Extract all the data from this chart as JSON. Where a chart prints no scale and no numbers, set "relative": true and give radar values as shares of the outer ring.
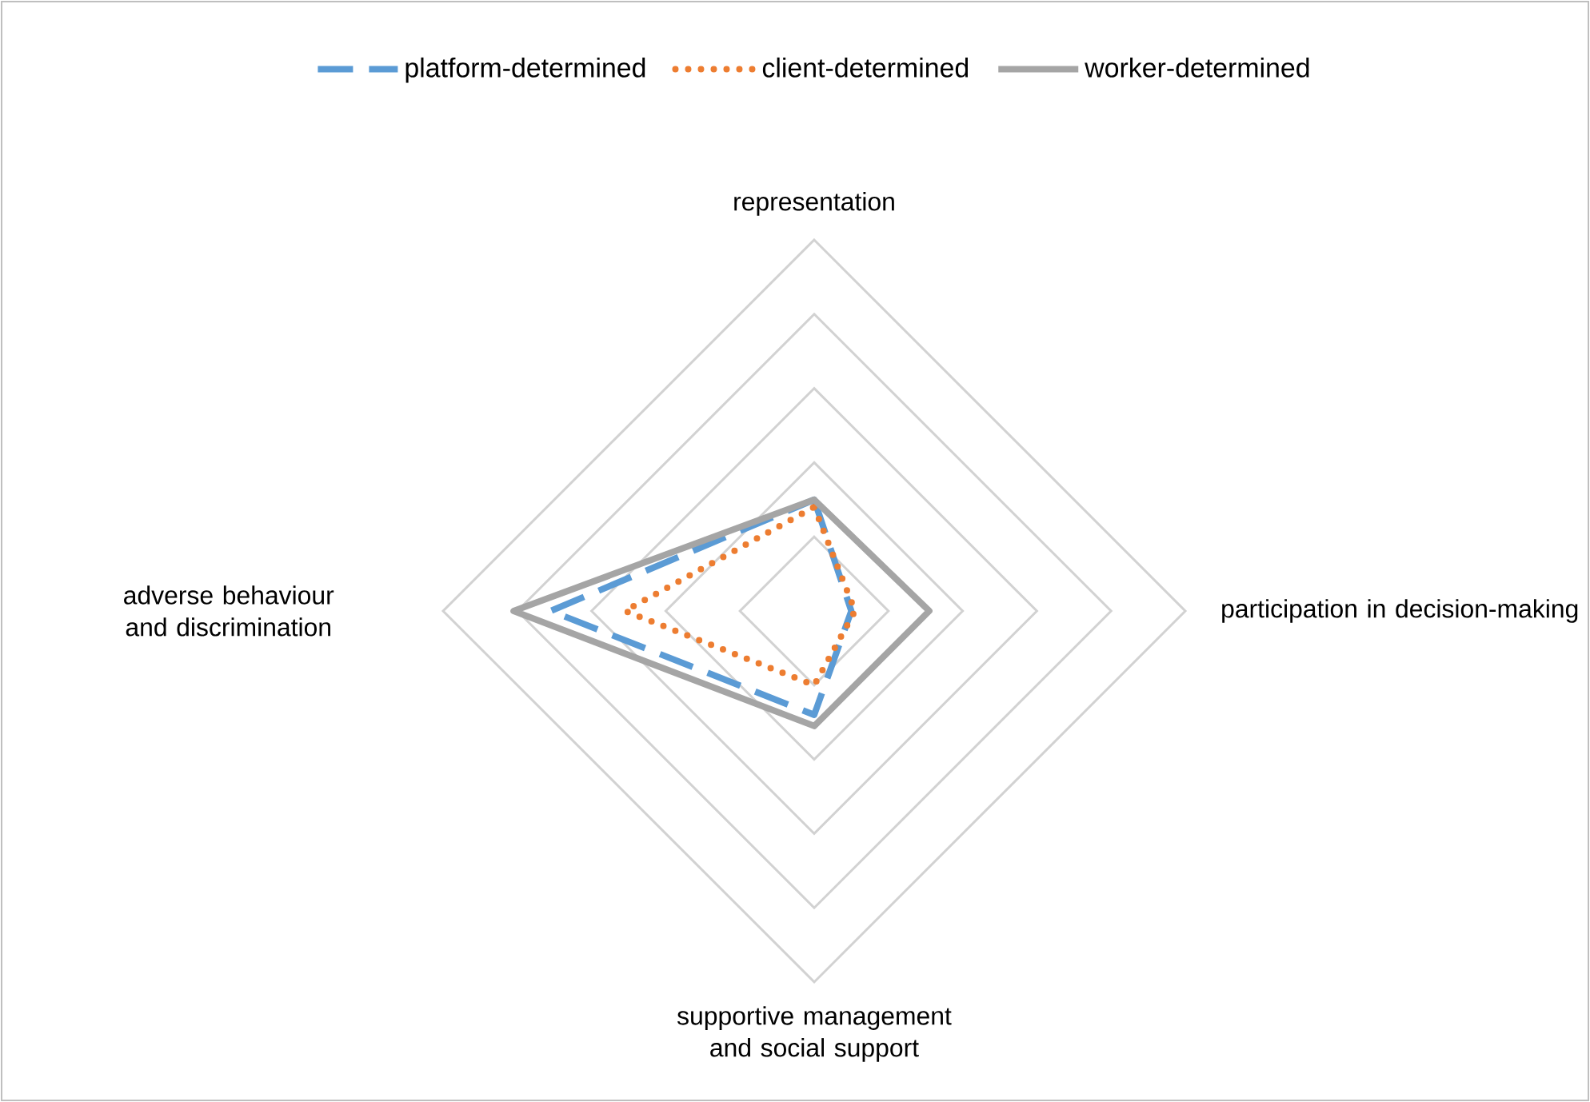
{
  "chart_data": {
    "type": "radar",
    "relative": true,
    "grid": true,
    "legend": "top",
    "categories": [
      "representation",
      "participation in decision-making",
      "supportive management and social support",
      "adverse behaviour and discrimination"
    ],
    "series": [
      {
        "name": "platform-determined",
        "color": "#5b9bd5",
        "line_style": "dashed",
        "values": [
          0.3,
          0.1,
          0.28,
          0.71
        ]
      },
      {
        "name": "client-determined",
        "color": "#ed7d31",
        "line_style": "dotted",
        "values": [
          0.28,
          0.11,
          0.2,
          0.51
        ]
      },
      {
        "name": "worker-determined",
        "color": "#a5a5a5",
        "line_style": "solid",
        "values": [
          0.3,
          0.31,
          0.31,
          0.81
        ]
      }
    ]
  }
}
